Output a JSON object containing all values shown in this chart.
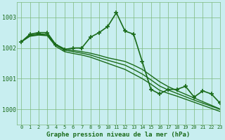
{
  "title": "Graphe pression niveau de la mer (hPa)",
  "background_color": "#c8eef0",
  "grid_color": "#7db87d",
  "line_color": "#1a6b1a",
  "xlim": [
    -0.5,
    23
  ],
  "ylim": [
    999.5,
    1003.5
  ],
  "yticks": [
    1000,
    1001,
    1002,
    1003
  ],
  "xticks": [
    0,
    1,
    2,
    3,
    4,
    5,
    6,
    7,
    8,
    9,
    10,
    11,
    12,
    13,
    14,
    15,
    16,
    17,
    18,
    19,
    20,
    21,
    22,
    23
  ],
  "series": [
    {
      "x": [
        0,
        1,
        2,
        3,
        4,
        5,
        6,
        7,
        8,
        9,
        10,
        11,
        12,
        13,
        14,
        15,
        16,
        17,
        18,
        19,
        20,
        21,
        22,
        23
      ],
      "y": [
        1002.2,
        1002.45,
        1002.5,
        1002.5,
        1002.1,
        1001.95,
        1002.0,
        1002.0,
        1002.35,
        1002.5,
        1002.7,
        1003.15,
        1002.55,
        1002.45,
        1001.55,
        1000.65,
        1000.5,
        1000.65,
        1000.65,
        1000.75,
        1000.4,
        1000.6,
        1000.5,
        1000.2
      ],
      "marker": "+",
      "linewidth": 1.2,
      "markersize": 5
    },
    {
      "x": [
        0,
        1,
        2,
        3,
        4,
        5,
        6,
        7,
        8,
        9,
        10,
        11,
        12,
        13,
        14,
        15,
        16,
        17,
        18,
        19,
        20,
        21,
        22,
        23
      ],
      "y": [
        1002.2,
        1002.38,
        1002.42,
        1002.4,
        1002.05,
        1001.88,
        1001.82,
        1001.77,
        1001.7,
        1001.6,
        1001.5,
        1001.4,
        1001.3,
        1001.15,
        1001.0,
        1000.82,
        1000.62,
        1000.52,
        1000.43,
        1000.33,
        1000.23,
        1000.13,
        1000.03,
        999.93
      ],
      "marker": "None",
      "linewidth": 1.0,
      "markersize": 0
    },
    {
      "x": [
        0,
        1,
        2,
        3,
        4,
        5,
        6,
        7,
        8,
        9,
        10,
        11,
        12,
        13,
        14,
        15,
        16,
        17,
        18,
        19,
        20,
        21,
        22,
        23
      ],
      "y": [
        1002.2,
        1002.4,
        1002.44,
        1002.42,
        1002.1,
        1001.93,
        1001.88,
        1001.83,
        1001.77,
        1001.68,
        1001.6,
        1001.52,
        1001.44,
        1001.3,
        1001.15,
        1000.96,
        1000.76,
        1000.63,
        1000.52,
        1000.41,
        1000.3,
        1000.2,
        1000.1,
        1000.0
      ],
      "marker": "None",
      "linewidth": 1.0,
      "markersize": 0
    },
    {
      "x": [
        0,
        1,
        2,
        3,
        4,
        5,
        6,
        7,
        8,
        9,
        10,
        11,
        12,
        13,
        14,
        15,
        16,
        17,
        18,
        19,
        20,
        21,
        22,
        23
      ],
      "y": [
        1002.2,
        1002.41,
        1002.46,
        1002.44,
        1002.12,
        1001.97,
        1001.92,
        1001.88,
        1001.83,
        1001.76,
        1001.68,
        1001.62,
        1001.56,
        1001.44,
        1001.3,
        1001.1,
        1000.9,
        1000.74,
        1000.61,
        1000.49,
        1000.37,
        1000.25,
        1000.13,
        1000.01
      ],
      "marker": "None",
      "linewidth": 1.0,
      "markersize": 0
    }
  ]
}
